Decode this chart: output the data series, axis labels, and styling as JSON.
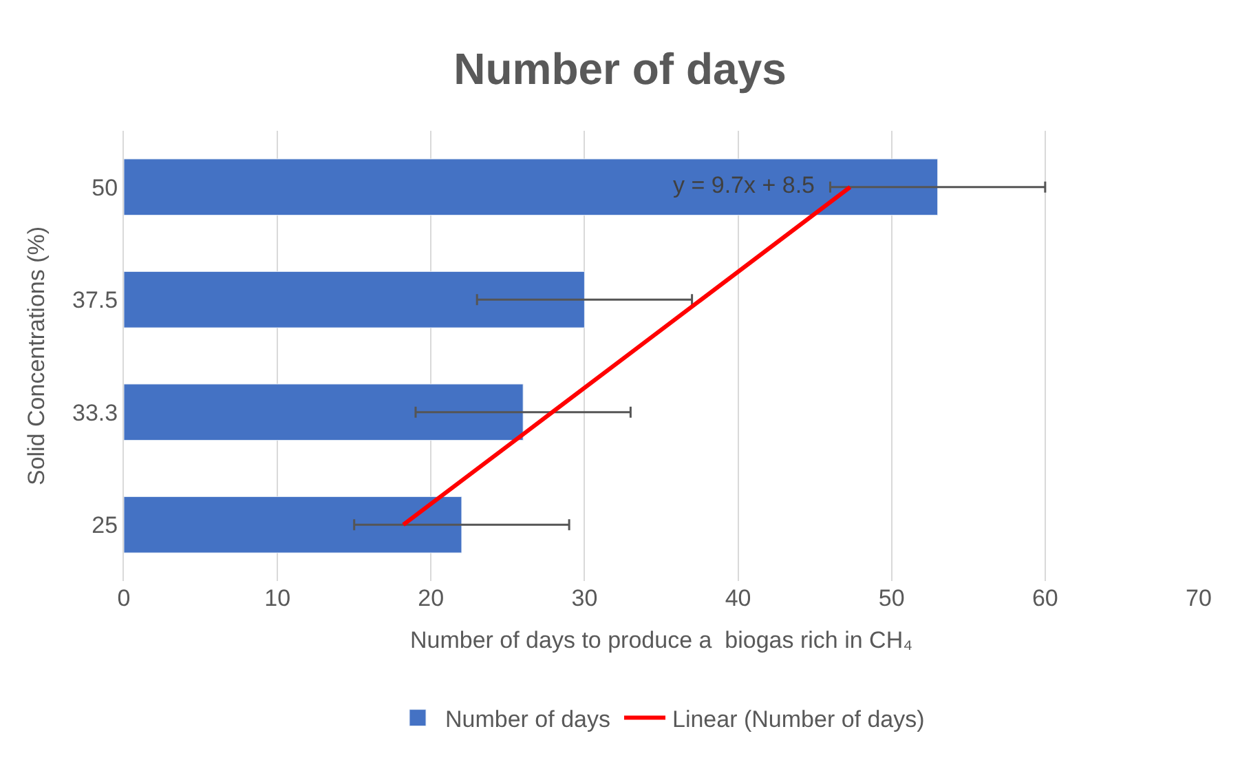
{
  "chart_data": {
    "type": "bar",
    "orientation": "horizontal",
    "title": "Number of days",
    "xlabel": "Number of days to produce a  biogas rich in CH₄",
    "ylabel": "Solid Concentrations (%)",
    "categories": [
      "50",
      "37.5",
      "33.3",
      "25"
    ],
    "series": [
      {
        "name": "Number of days",
        "color": "#4472c4",
        "values": [
          53,
          30,
          26,
          22
        ],
        "errors": [
          7,
          7,
          7,
          7
        ]
      },
      {
        "name": "Linear (Number of days)",
        "type": "line",
        "color": "#ff0000",
        "values": [
          47.3,
          37.6,
          27.9,
          18.2
        ]
      }
    ],
    "annotations": [
      "y = 9.7x + 8.5"
    ],
    "xlim": [
      0,
      70
    ],
    "xticks": [
      0,
      10,
      20,
      30,
      40,
      50,
      60,
      70
    ],
    "grid": "x",
    "legend": "bottom"
  }
}
